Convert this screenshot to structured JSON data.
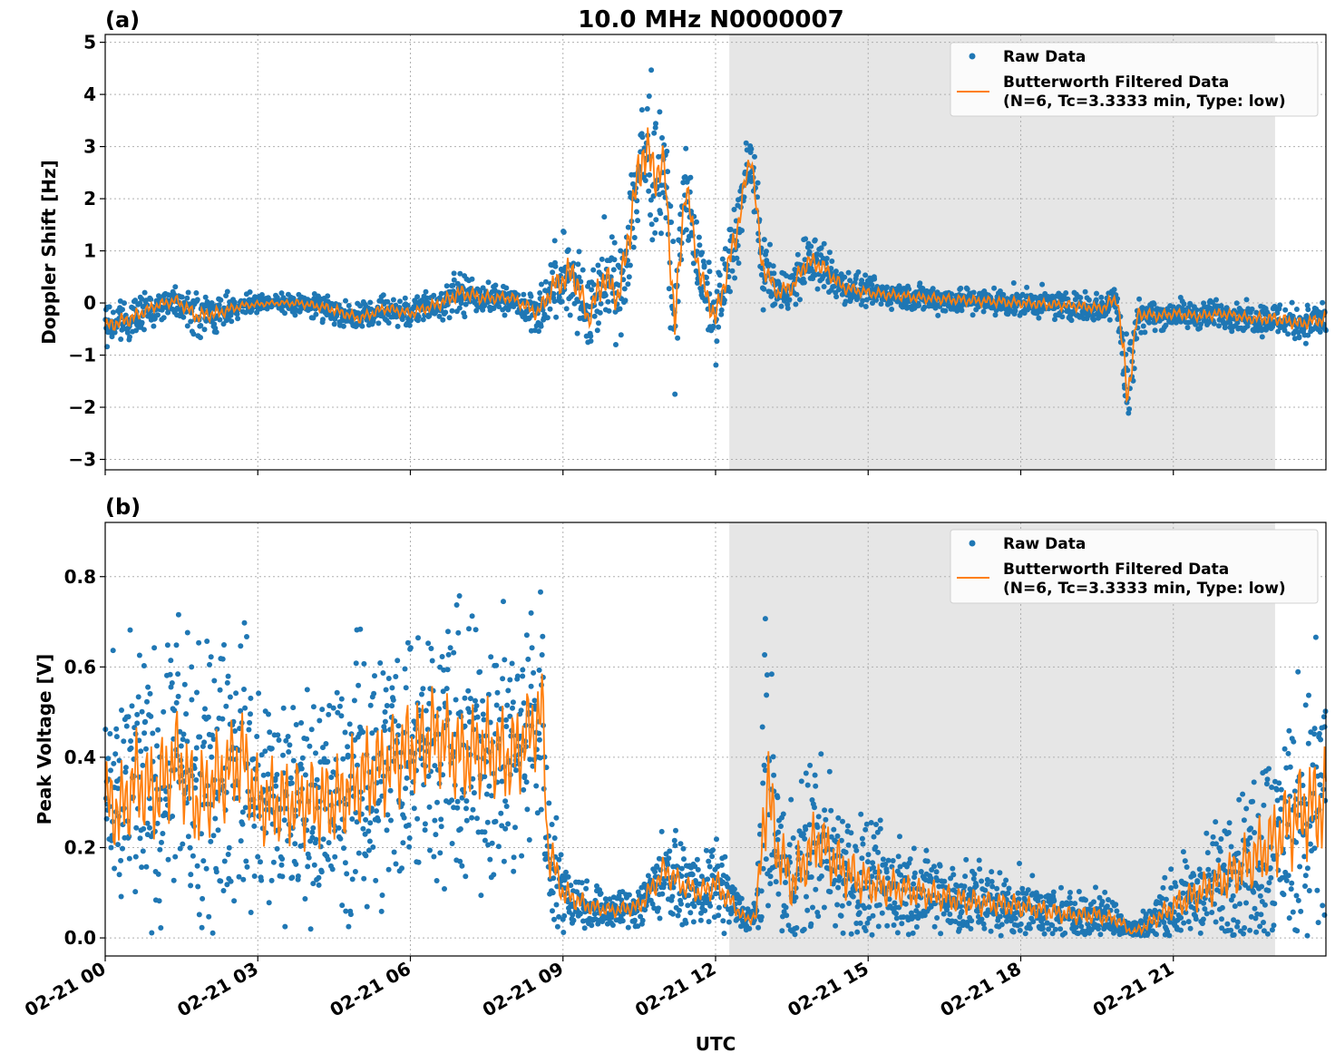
{
  "figure": {
    "title": "10.0 MHz N0000007",
    "xlabel": "UTC",
    "x_ticks": [
      "02-21 00",
      "02-21 03",
      "02-21 06",
      "02-21 09",
      "02-21 12",
      "02-21 15",
      "02-21 18",
      "02-21 21"
    ]
  },
  "colors": {
    "raw": "#1f77b4",
    "filtered": "#ff7f0e",
    "shade": "#e6e6e6",
    "grid": "#b0b0b0"
  },
  "chart_data": [
    {
      "type": "scatter",
      "panel_label": "(a)",
      "ylabel": "Doppler Shift [Hz]",
      "xlim_hours": [
        0,
        24
      ],
      "ylim": [
        -3.2,
        5.15
      ],
      "y_ticks": [
        "5",
        "4",
        "3",
        "2",
        "1",
        "0",
        "−1",
        "−2",
        "−3"
      ],
      "y_tick_values": [
        5,
        4,
        3,
        2,
        1,
        0,
        -1,
        -2,
        -3
      ],
      "grid": true,
      "legend_position": "top-right",
      "legend": {
        "raw": "Raw Data",
        "filtered_line1": "Butterworth Filtered Data",
        "filtered_line2": "(N=6, Tc=3.3333 min, Type: low)"
      },
      "shaded_region_hours": [
        12.27,
        23.0
      ],
      "x_hours": [
        0,
        0.5,
        1,
        1.4,
        1.8,
        2.2,
        2.7,
        3.3,
        3.8,
        4.4,
        5.0,
        5.5,
        6.0,
        6.6,
        7.0,
        7.4,
        8.0,
        8.5,
        8.8,
        9.2,
        9.5,
        9.8,
        10.1,
        10.4,
        10.6,
        10.8,
        11.0,
        11.2,
        11.4,
        11.7,
        12.0,
        12.4,
        12.7,
        12.9,
        13.2,
        13.5,
        13.8,
        14.1,
        14.5,
        15.0,
        16.0,
        17.0,
        18.0,
        19.0,
        19.6,
        19.9,
        20.1,
        20.3,
        20.7,
        21.0,
        21.5,
        22.0,
        22.5,
        23.0,
        23.5,
        24.0
      ],
      "filtered_y": [
        -0.45,
        -0.3,
        -0.05,
        0.05,
        -0.25,
        -0.2,
        -0.05,
        0.0,
        0.0,
        -0.1,
        -0.3,
        -0.1,
        -0.2,
        0.0,
        0.2,
        0.1,
        0.1,
        -0.2,
        0.3,
        0.6,
        -0.3,
        0.5,
        0.1,
        2.0,
        3.0,
        2.5,
        2.6,
        -0.5,
        2.3,
        0.5,
        -0.3,
        1.3,
        2.9,
        0.8,
        0.2,
        0.3,
        0.8,
        0.7,
        0.3,
        0.2,
        0.1,
        0.05,
        0.0,
        -0.05,
        -0.1,
        0.1,
        -1.8,
        -0.2,
        -0.25,
        -0.2,
        -0.25,
        -0.2,
        -0.3,
        -0.3,
        -0.4,
        -0.3
      ],
      "raw_spread": [
        0.3,
        0.3,
        0.2,
        0.2,
        0.3,
        0.25,
        0.15,
        0.1,
        0.15,
        0.2,
        0.2,
        0.2,
        0.2,
        0.25,
        0.3,
        0.25,
        0.2,
        0.3,
        0.5,
        0.7,
        0.5,
        0.7,
        0.6,
        1.0,
        1.2,
        1.0,
        0.8,
        0.8,
        0.8,
        0.5,
        0.5,
        0.6,
        0.5,
        0.5,
        0.3,
        0.35,
        0.4,
        0.35,
        0.25,
        0.2,
        0.2,
        0.2,
        0.2,
        0.2,
        0.2,
        0.3,
        0.8,
        0.25,
        0.2,
        0.2,
        0.2,
        0.2,
        0.2,
        0.25,
        0.25,
        0.25
      ]
    },
    {
      "type": "scatter",
      "panel_label": "(b)",
      "ylabel": "Peak Voltage [V]",
      "xlim_hours": [
        0,
        24
      ],
      "ylim": [
        -0.04,
        0.92
      ],
      "y_ticks": [
        "0.8",
        "0.6",
        "0.4",
        "0.2",
        "0.0"
      ],
      "y_tick_values": [
        0.8,
        0.6,
        0.4,
        0.2,
        0.0
      ],
      "grid": true,
      "legend_position": "top-right",
      "legend": {
        "raw": "Raw Data",
        "filtered_line1": "Butterworth Filtered Data",
        "filtered_line2": "(N=6, Tc=3.3333 min, Type: low)"
      },
      "shaded_region_hours": [
        12.27,
        23.0
      ],
      "x_hours": [
        0,
        0.3,
        0.6,
        1.0,
        1.4,
        1.8,
        2.2,
        2.7,
        3.0,
        3.5,
        4.0,
        4.5,
        5.0,
        5.5,
        6.0,
        6.5,
        7.0,
        7.5,
        8.0,
        8.3,
        8.6,
        8.7,
        9.0,
        9.5,
        10.0,
        10.5,
        11.0,
        11.3,
        11.7,
        12.0,
        12.3,
        12.6,
        12.8,
        13.0,
        13.2,
        13.5,
        13.8,
        14.0,
        14.5,
        15.0,
        16.0,
        17.0,
        18.0,
        19.0,
        19.5,
        19.9,
        20.2,
        20.5,
        21.0,
        21.5,
        22.0,
        22.5,
        23.0,
        23.5,
        24.0
      ],
      "filtered_y": [
        0.3,
        0.28,
        0.35,
        0.32,
        0.4,
        0.3,
        0.35,
        0.4,
        0.3,
        0.3,
        0.3,
        0.3,
        0.35,
        0.38,
        0.42,
        0.45,
        0.4,
        0.42,
        0.4,
        0.45,
        0.5,
        0.2,
        0.1,
        0.07,
        0.06,
        0.07,
        0.15,
        0.12,
        0.1,
        0.12,
        0.08,
        0.04,
        0.05,
        0.35,
        0.2,
        0.12,
        0.18,
        0.22,
        0.15,
        0.12,
        0.1,
        0.08,
        0.07,
        0.05,
        0.05,
        0.04,
        0.01,
        0.03,
        0.07,
        0.1,
        0.13,
        0.17,
        0.22,
        0.28,
        0.3
      ],
      "raw_spread": [
        0.2,
        0.2,
        0.22,
        0.22,
        0.22,
        0.22,
        0.22,
        0.22,
        0.2,
        0.2,
        0.2,
        0.2,
        0.22,
        0.22,
        0.22,
        0.22,
        0.22,
        0.22,
        0.22,
        0.2,
        0.2,
        0.12,
        0.06,
        0.04,
        0.03,
        0.04,
        0.07,
        0.06,
        0.05,
        0.07,
        0.05,
        0.02,
        0.03,
        0.28,
        0.15,
        0.12,
        0.14,
        0.15,
        0.12,
        0.1,
        0.07,
        0.06,
        0.05,
        0.04,
        0.04,
        0.03,
        0.02,
        0.03,
        0.06,
        0.08,
        0.1,
        0.14,
        0.18,
        0.22,
        0.25
      ]
    }
  ]
}
